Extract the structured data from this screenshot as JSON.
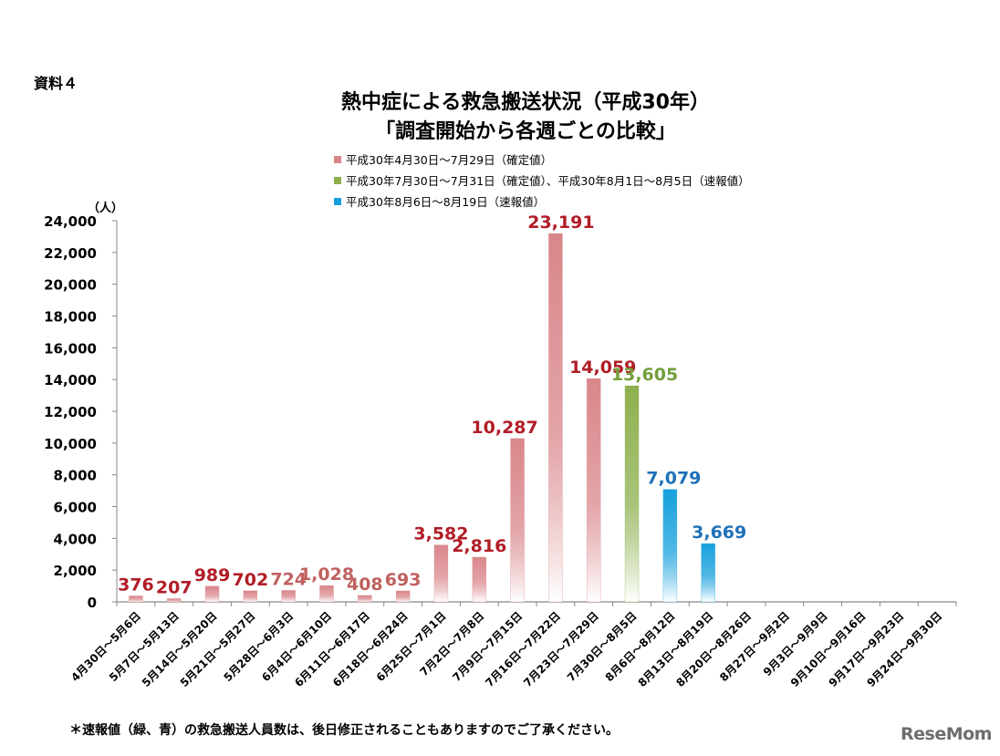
{
  "doc_label": "資料４",
  "title_line1": "熱中症による救急搬送状況（平成30年）",
  "title_line2": "「調査開始から各週ごとの比較」",
  "legend": [
    {
      "label": "平成30年4月30日～7月29日（確定値）",
      "color": "#d9868a"
    },
    {
      "label": "平成30年7月30日～7月31日（確定値）、平成30年8月1日～8月5日（速報値）",
      "color": "#8db04e"
    },
    {
      "label": "平成30年8月6日～8月19日（速報値）",
      "color": "#17a0dc"
    }
  ],
  "footnote": "＊速報値（緑、青）の救急搬送人員数は、後日修正されることもありますのでご了承ください。",
  "brand": "ReseMom",
  "chart_data": {
    "type": "bar",
    "yunit": "（人）",
    "ylim": [
      0,
      24000
    ],
    "yticks": [
      0,
      2000,
      4000,
      6000,
      8000,
      10000,
      12000,
      14000,
      16000,
      18000,
      20000,
      22000,
      24000
    ],
    "ytick_labels": [
      "0",
      "2,000",
      "4,000",
      "6,000",
      "8,000",
      "10,000",
      "12,000",
      "14,000",
      "16,000",
      "18,000",
      "20,000",
      "22,000",
      "24,000"
    ],
    "categories": [
      "4月30日～5月6日",
      "5月7日～5月13日",
      "5月14日～5月20日",
      "5月21日～5月27日",
      "5月28日～6月3日",
      "6月4日～6月10日",
      "6月11日～6月17日",
      "6月18日～6月24日",
      "6月25日～7月1日",
      "7月2日～7月8日",
      "7月9日～7月15日",
      "7月16日～7月22日",
      "7月23日～7月29日",
      "7月30日～8月5日",
      "8月6日～8月12日",
      "8月13日～8月19日",
      "8月20日～8月26日",
      "8月27日～9月2日",
      "9月3日～9月9日",
      "9月10日～9月16日",
      "9月17日～9月23日",
      "9月24日～9月30日"
    ],
    "values": [
      376,
      207,
      989,
      702,
      724,
      1028,
      408,
      693,
      3582,
      2816,
      10287,
      23191,
      14059,
      13605,
      7079,
      3669,
      null,
      null,
      null,
      null,
      null,
      null
    ],
    "value_labels": [
      "376",
      "207",
      "989",
      "702",
      "724",
      "1,028",
      "408",
      "693",
      "3,582",
      "2,816",
      "10,287",
      "23,191",
      "14,059",
      "13,605",
      "7,079",
      "3,669",
      "",
      "",
      "",
      "",
      "",
      ""
    ],
    "series_index": [
      0,
      0,
      0,
      0,
      0,
      0,
      0,
      0,
      0,
      0,
      0,
      0,
      0,
      1,
      2,
      2,
      0,
      0,
      0,
      0,
      0,
      0
    ],
    "label_colors": [
      "#b11d27",
      "#b11d27",
      "#b11d27",
      "#b11d27",
      "#c0615f",
      "#c0615f",
      "#c0615f",
      "#c0615f",
      "#b11d27",
      "#b11d27",
      "#b11d27",
      "#b11d27",
      "#b11d27",
      "#739e3a",
      "#1f71b8",
      "#1f71b8",
      "",
      "",
      "",
      "",
      "",
      ""
    ],
    "series_colors": [
      "#d9868a",
      "#8db04e",
      "#17a0dc"
    ]
  }
}
